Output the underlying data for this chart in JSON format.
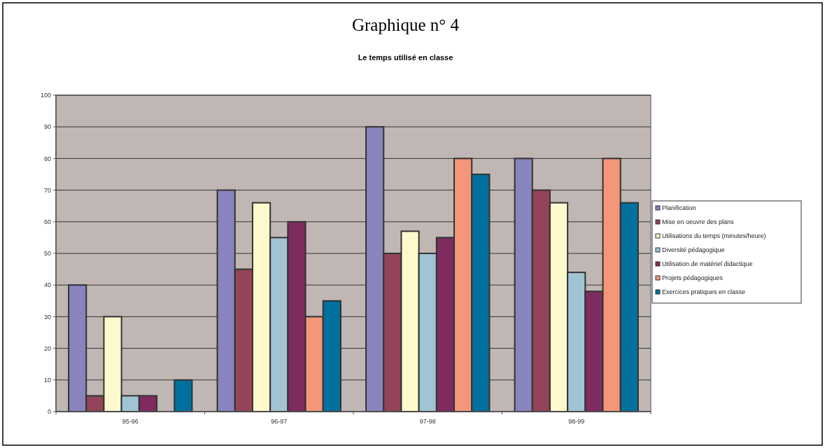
{
  "chart_data": {
    "type": "bar",
    "title": "Graphique n° 4",
    "subtitle": "Le temps utilisé en classe",
    "categories": [
      "95-96",
      "96-97",
      "97-98",
      "98-99"
    ],
    "series": [
      {
        "name": "Planification",
        "color": "#8884bd",
        "values": [
          40,
          70,
          90,
          80
        ]
      },
      {
        "name": "Mise en oeuvre des plans",
        "color": "#934459",
        "values": [
          5,
          45,
          50,
          70
        ]
      },
      {
        "name": "Utilisations du temps (minutes/heure)",
        "color": "#fdf9cc",
        "values": [
          30,
          66,
          57,
          66
        ]
      },
      {
        "name": "Diversité pédagogique",
        "color": "#a0c4d4",
        "values": [
          5,
          55,
          50,
          44
        ]
      },
      {
        "name": "Utilisation de matériel didactique",
        "color": "#7e2c5f",
        "values": [
          5,
          60,
          55,
          38
        ]
      },
      {
        "name": "Projets pédagogiques",
        "color": "#f49679",
        "values": [
          0,
          30,
          80,
          80
        ]
      },
      {
        "name": "Exercices pratiques en classe",
        "color": "#00709c",
        "values": [
          10,
          35,
          75,
          66
        ]
      }
    ],
    "ylim": [
      0,
      100
    ],
    "yticks": [
      0,
      10,
      20,
      30,
      40,
      50,
      60,
      70,
      80,
      90,
      100
    ],
    "grid": "y",
    "legend": "right"
  }
}
